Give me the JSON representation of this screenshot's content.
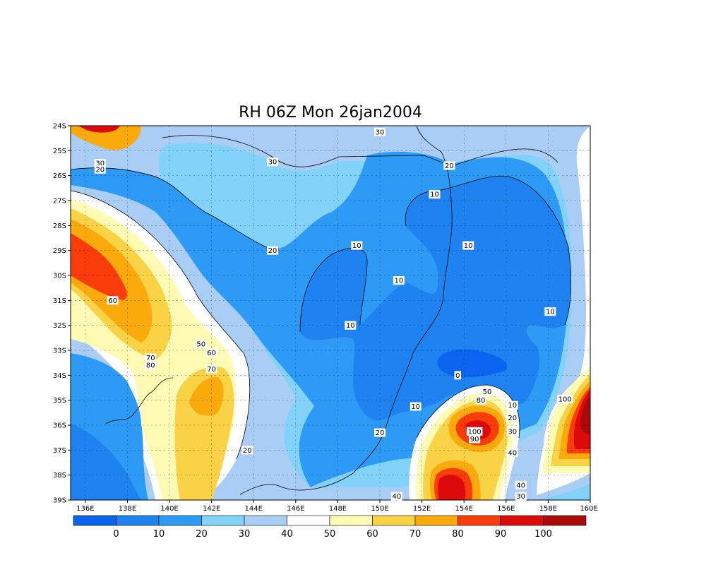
{
  "chart_data": {
    "type": "heatmap",
    "title": "RH 06Z Mon 26jan2004",
    "variable": "RH",
    "x_ticks": [
      "136E",
      "138E",
      "140E",
      "142E",
      "144E",
      "146E",
      "148E",
      "150E",
      "152E",
      "154E",
      "156E",
      "158E",
      "160E"
    ],
    "y_ticks": [
      "24S",
      "25S",
      "26S",
      "27S",
      "28S",
      "29S",
      "30S",
      "31S",
      "32S",
      "33S",
      "34S",
      "35S",
      "36S",
      "37S",
      "38S",
      "39S"
    ],
    "xlim": [
      135.3,
      160
    ],
    "ylim": [
      -39,
      -24
    ],
    "grid": true,
    "colorbar": {
      "placement": "bottom",
      "labels": [
        "0",
        "10",
        "20",
        "30",
        "40",
        "50",
        "60",
        "70",
        "80",
        "90",
        "100"
      ],
      "levels": [
        0,
        10,
        20,
        30,
        40,
        50,
        60,
        70,
        80,
        90,
        100
      ],
      "colors": [
        "#0a64f0",
        "#1e82f0",
        "#2d9bf5",
        "#82d2fa",
        "#aacdf5",
        "#ffffff",
        "#fffab4",
        "#fad246",
        "#faaa0a",
        "#fa3c0a",
        "#dc0a0a",
        "#aa0a0a"
      ]
    },
    "contour_labels": [
      {
        "text": "30",
        "lon": 150,
        "lat": -24.25
      },
      {
        "text": "30",
        "lon": 136.7,
        "lat": -25.5
      },
      {
        "text": "20",
        "lon": 136.7,
        "lat": -25.75
      },
      {
        "text": "30",
        "lon": 144.9,
        "lat": -25.45
      },
      {
        "text": "20",
        "lon": 153.3,
        "lat": -25.6
      },
      {
        "text": "10",
        "lon": 152.6,
        "lat": -26.75
      },
      {
        "text": "20",
        "lon": 144.9,
        "lat": -29.0
      },
      {
        "text": "10",
        "lon": 148.9,
        "lat": -28.8
      },
      {
        "text": "10",
        "lon": 154.2,
        "lat": -28.8
      },
      {
        "text": "10",
        "lon": 150.9,
        "lat": -30.2
      },
      {
        "text": "60",
        "lon": 137.3,
        "lat": -31.0
      },
      {
        "text": "10",
        "lon": 158.1,
        "lat": -31.45
      },
      {
        "text": "10",
        "lon": 148.6,
        "lat": -32.0
      },
      {
        "text": "50",
        "lon": 141.5,
        "lat": -32.75
      },
      {
        "text": "60",
        "lon": 142.0,
        "lat": -33.1
      },
      {
        "text": "70",
        "lon": 139.1,
        "lat": -33.3
      },
      {
        "text": "80",
        "lon": 139.1,
        "lat": -33.6
      },
      {
        "text": "70",
        "lon": 142.0,
        "lat": -33.75
      },
      {
        "text": "0",
        "lon": 153.7,
        "lat": -34.0
      },
      {
        "text": "50",
        "lon": 155.1,
        "lat": -34.65
      },
      {
        "text": "80",
        "lon": 154.8,
        "lat": -35.0
      },
      {
        "text": "10",
        "lon": 156.3,
        "lat": -35.2
      },
      {
        "text": "100",
        "lon": 158.8,
        "lat": -34.95
      },
      {
        "text": "10",
        "lon": 151.7,
        "lat": -35.25
      },
      {
        "text": "20",
        "lon": 156.3,
        "lat": -35.7
      },
      {
        "text": "100",
        "lon": 154.5,
        "lat": -36.25
      },
      {
        "text": "30",
        "lon": 156.3,
        "lat": -36.25
      },
      {
        "text": "90",
        "lon": 154.5,
        "lat": -36.55
      },
      {
        "text": "20",
        "lon": 150.0,
        "lat": -36.3
      },
      {
        "text": "20",
        "lon": 143.7,
        "lat": -37.0
      },
      {
        "text": "40",
        "lon": 156.3,
        "lat": -37.1
      },
      {
        "text": "40",
        "lon": 156.7,
        "lat": -38.4
      },
      {
        "text": "40",
        "lon": 150.8,
        "lat": -38.85
      },
      {
        "text": "30",
        "lon": 156.7,
        "lat": -38.85
      }
    ]
  }
}
